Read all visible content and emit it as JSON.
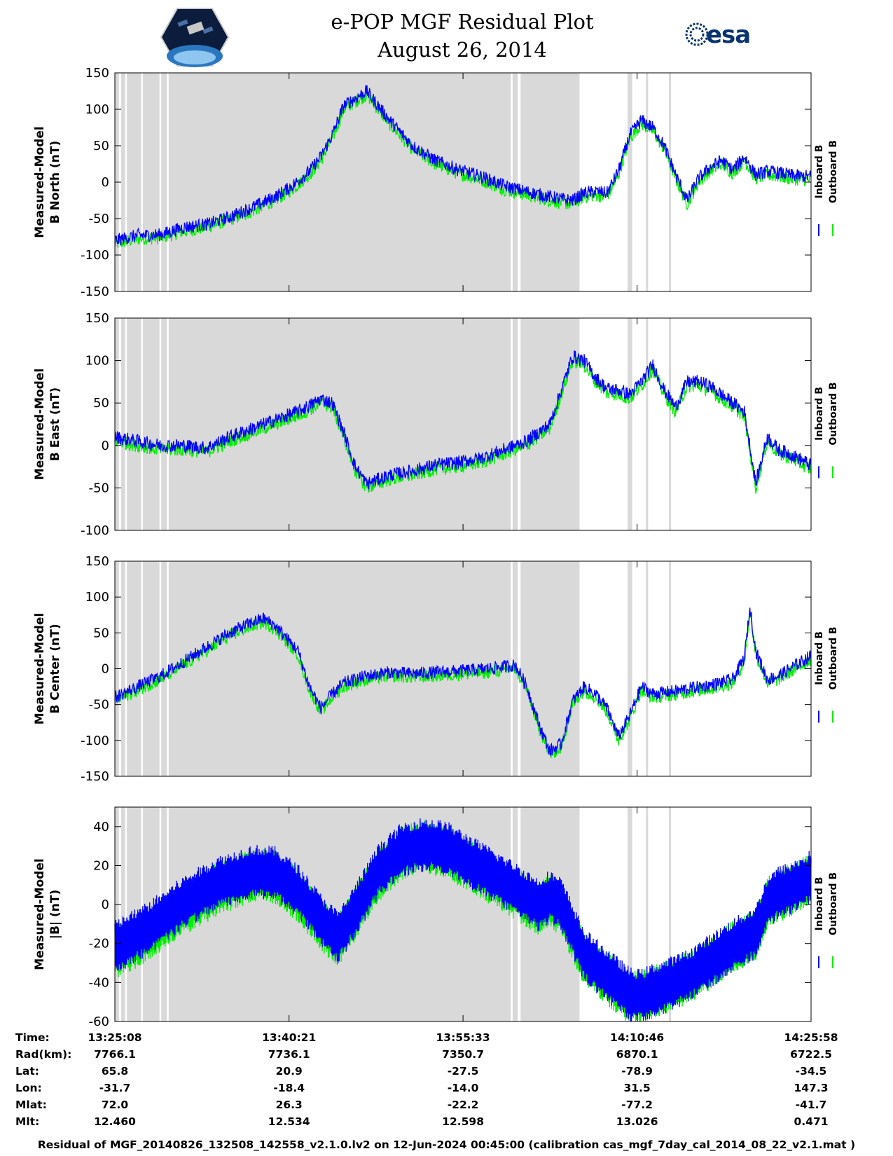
{
  "header": {
    "title_line1": "e-POP MGF Residual Plot",
    "title_line2": "August 26, 2014",
    "logo_right_text": "esa",
    "logo_left_icon": "cassiope-mission-logo",
    "logo_right_icon": "esa-logo"
  },
  "colors": {
    "inboard": "#0000ff",
    "outboard": "#00ee00",
    "shade": "#d9d9d9"
  },
  "chart_data": [
    {
      "type": "line",
      "ylabel_line1": "Measured-Model",
      "ylabel_line2": "B North (nT)",
      "ylim": [
        -150,
        150
      ],
      "yticks": [
        -150,
        -100,
        -50,
        0,
        50,
        100,
        150
      ],
      "legend": [
        "Inboard B",
        "Outboard B"
      ],
      "x_minutes": [
        0,
        2,
        4,
        6,
        8,
        10,
        12,
        14,
        15.5,
        17,
        18,
        19,
        20,
        22,
        24,
        26,
        28,
        30,
        32,
        34,
        36,
        38,
        39,
        40,
        41,
        42,
        43,
        44,
        45,
        46,
        47,
        48,
        49,
        50,
        51,
        52,
        53,
        54,
        55,
        56,
        57,
        58,
        59,
        60,
        61
      ],
      "series": [
        {
          "name": "Outboard B",
          "values": [
            -85,
            -78,
            -76,
            -68,
            -62,
            -52,
            -40,
            -25,
            -10,
            10,
            30,
            60,
            100,
            120,
            80,
            45,
            25,
            12,
            3,
            -10,
            -18,
            -25,
            -28,
            -30,
            -20,
            -18,
            -20,
            10,
            60,
            80,
            70,
            45,
            5,
            -30,
            0,
            15,
            25,
            12,
            30,
            5,
            10,
            8,
            5,
            3,
            3
          ]
        },
        {
          "name": "Inboard B",
          "values": [
            -80,
            -73,
            -72,
            -62,
            -58,
            -48,
            -35,
            -20,
            -5,
            15,
            35,
            65,
            105,
            125,
            85,
            50,
            30,
            17,
            8,
            -5,
            -13,
            -20,
            -23,
            -25,
            -15,
            -13,
            -15,
            15,
            65,
            85,
            75,
            50,
            10,
            -25,
            5,
            20,
            30,
            17,
            35,
            10,
            15,
            13,
            10,
            8,
            8
          ]
        }
      ],
      "noise": 9
    },
    {
      "type": "line",
      "ylabel_line1": "Measured-Model",
      "ylabel_line2": "B East (nT)",
      "ylim": [
        -100,
        150
      ],
      "yticks": [
        -100,
        -50,
        0,
        50,
        100,
        150
      ],
      "legend": [
        "Inboard B",
        "Outboard B"
      ],
      "x_minutes": [
        0,
        2,
        4,
        6,
        8,
        10,
        12,
        14,
        16,
        17,
        18,
        19,
        20,
        21,
        22,
        24,
        26,
        28,
        30,
        32,
        34,
        36,
        37,
        38,
        39,
        40,
        41,
        42,
        43,
        44,
        45,
        46,
        47,
        48,
        49,
        50,
        51,
        52,
        53,
        54,
        55,
        56,
        57,
        58,
        59,
        60,
        61
      ],
      "series": [
        {
          "name": "Outboard B",
          "values": [
            5,
            0,
            -5,
            -5,
            -8,
            5,
            15,
            25,
            35,
            42,
            50,
            45,
            10,
            -30,
            -50,
            -40,
            -35,
            -28,
            -25,
            -20,
            -10,
            0,
            10,
            20,
            60,
            100,
            95,
            75,
            62,
            60,
            55,
            70,
            90,
            60,
            40,
            70,
            70,
            65,
            55,
            45,
            35,
            -50,
            5,
            -10,
            -15,
            -22,
            -30
          ]
        },
        {
          "name": "Inboard B",
          "values": [
            10,
            5,
            0,
            0,
            -3,
            10,
            20,
            30,
            40,
            47,
            55,
            50,
            15,
            -25,
            -45,
            -35,
            -30,
            -23,
            -20,
            -15,
            -5,
            5,
            15,
            25,
            65,
            105,
            100,
            80,
            67,
            65,
            60,
            75,
            95,
            65,
            45,
            75,
            75,
            70,
            60,
            50,
            40,
            -45,
            10,
            -5,
            -10,
            -17,
            -25
          ]
        }
      ],
      "noise": 8
    },
    {
      "type": "line",
      "ylabel_line1": "Measured-Model",
      "ylabel_line2": "B Center (nT)",
      "ylim": [
        -150,
        150
      ],
      "yticks": [
        -150,
        -100,
        -50,
        0,
        50,
        100,
        150
      ],
      "legend": [
        "Inboard B",
        "Outboard B"
      ],
      "x_minutes": [
        0,
        2,
        4,
        6,
        8,
        10,
        12,
        13,
        14,
        16,
        17,
        18,
        19,
        20,
        22,
        24,
        26,
        28,
        30,
        32,
        34,
        35,
        36,
        37,
        38,
        39,
        40,
        41,
        42,
        43,
        44,
        45,
        46,
        47,
        48,
        49,
        50,
        52,
        54,
        55,
        55.5,
        56,
        57,
        58,
        59,
        60,
        61
      ],
      "series": [
        {
          "name": "Outboard B",
          "values": [
            -45,
            -30,
            -15,
            5,
            25,
            45,
            60,
            65,
            55,
            20,
            -30,
            -60,
            -40,
            -25,
            -15,
            -10,
            -12,
            -10,
            -8,
            -6,
            -2,
            0,
            -30,
            -80,
            -120,
            -110,
            -50,
            -30,
            -40,
            -60,
            -100,
            -70,
            -30,
            -40,
            -38,
            -36,
            -33,
            -28,
            -20,
            10,
            80,
            20,
            -20,
            -15,
            -5,
            5,
            15
          ]
        },
        {
          "name": "Inboard B",
          "values": [
            -40,
            -25,
            -10,
            10,
            30,
            50,
            65,
            70,
            60,
            25,
            -25,
            -55,
            -35,
            -20,
            -10,
            -5,
            -7,
            -5,
            -3,
            -1,
            3,
            5,
            -25,
            -75,
            -115,
            -105,
            -45,
            -25,
            -35,
            -55,
            -95,
            -65,
            -25,
            -35,
            -33,
            -31,
            -28,
            -23,
            -15,
            15,
            85,
            25,
            -15,
            -10,
            0,
            10,
            20
          ]
        }
      ],
      "noise": 9
    },
    {
      "type": "line",
      "ylabel_line1": "Measured-Model",
      "ylabel_line2": "|B| (nT)",
      "ylim": [
        -60,
        50
      ],
      "yticks": [
        -60,
        -40,
        -20,
        0,
        20,
        40
      ],
      "legend": [
        "Inboard B",
        "Outboard B"
      ],
      "x_minutes": [
        0,
        3,
        6,
        9,
        12,
        14,
        16,
        18,
        19.5,
        21,
        23,
        25,
        27,
        29,
        31,
        33,
        35,
        37,
        38,
        39,
        40,
        41,
        43,
        45,
        46,
        47,
        48,
        50,
        52,
        54,
        56,
        57,
        58,
        59,
        60,
        61
      ],
      "series": [
        {
          "name": "Outboard B",
          "values": [
            -25,
            -15,
            -2,
            8,
            15,
            14,
            5,
            -10,
            -18,
            -5,
            15,
            26,
            30,
            27,
            20,
            13,
            6,
            -2,
            2,
            -2,
            -15,
            -28,
            -38,
            -48,
            -48,
            -45,
            -43,
            -38,
            -30,
            -22,
            -15,
            0,
            5,
            7,
            10,
            14
          ]
        },
        {
          "name": "Inboard B",
          "values": [
            -22,
            -12,
            1,
            11,
            17,
            16,
            7,
            -8,
            -17,
            -3,
            17,
            28,
            31,
            29,
            22,
            15,
            8,
            0,
            4,
            0,
            -13,
            -26,
            -36,
            -46,
            -47,
            -44,
            -42,
            -37,
            -29,
            -21,
            -14,
            1,
            6,
            8,
            11,
            15
          ]
        }
      ],
      "band": 14,
      "noise": 3
    }
  ],
  "shading": {
    "spans": [
      [
        0.0,
        40.6
      ],
      [
        44.8,
        45.2
      ]
    ],
    "white_gaps": [
      [
        0.35,
        0.55
      ],
      [
        0.9,
        1.05
      ],
      [
        2.3,
        2.45
      ],
      [
        3.9,
        4.05
      ],
      [
        4.55,
        4.7
      ],
      [
        34.6,
        34.75
      ],
      [
        35.2,
        35.45
      ]
    ],
    "grey_lines": [
      46.5,
      48.5
    ]
  },
  "time_axis": {
    "minutes_ticks": [
      0,
      15.22,
      30.42,
      45.63,
      60.83
    ],
    "info_rows": [
      {
        "label": "Time:",
        "values": [
          "13:25:08",
          "13:40:21",
          "13:55:33",
          "14:10:46",
          "14:25:58"
        ]
      },
      {
        "label": "Rad(km):",
        "values": [
          "7766.1",
          "7736.1",
          "7350.7",
          "6870.1",
          "6722.5"
        ]
      },
      {
        "label": "Lat:",
        "values": [
          "65.8",
          "20.9",
          "-27.5",
          "-78.9",
          "-34.5"
        ]
      },
      {
        "label": "Lon:",
        "values": [
          "-31.7",
          "-18.4",
          "-14.0",
          "31.5",
          "147.3"
        ]
      },
      {
        "label": "Mlat:",
        "values": [
          "72.0",
          "26.3",
          "-22.2",
          "-77.2",
          "-41.7"
        ]
      },
      {
        "label": "Mlt:",
        "values": [
          "12.460",
          "12.534",
          "12.598",
          "13.026",
          "0.471"
        ]
      }
    ]
  },
  "footer": "Residual of MGF_20140826_132508_142558_v2.1.0.lv2 on 12-Jun-2024 00:45:00 (calibration cas_mgf_7day_cal_2014_08_22_v2.1.mat )"
}
